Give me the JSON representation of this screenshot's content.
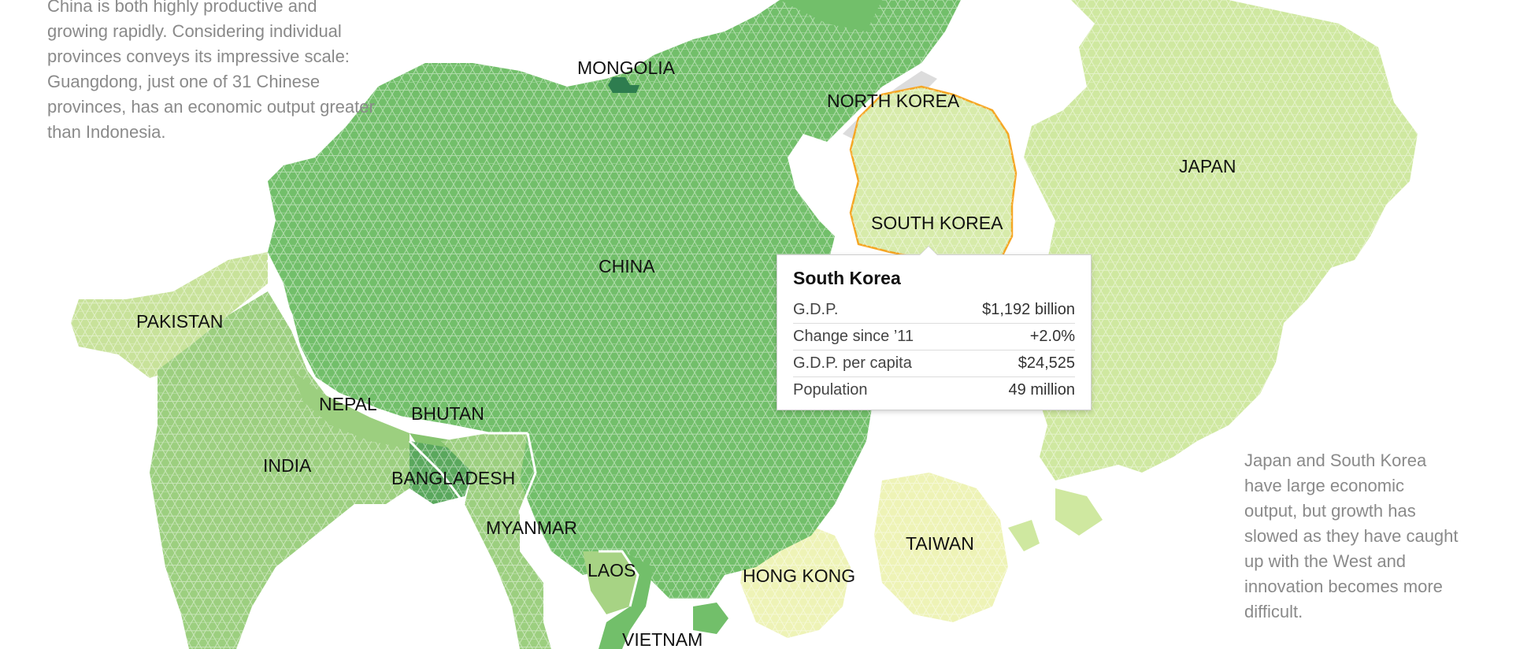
{
  "annotations": {
    "china": "China is both highly productive and\ngrowing rapidly. Considering individual\nprovinces conveys its impressive scale:\nGuangdong, just one of 31 Chinese\nprovinces, has an economic output greater\nthan Indonesia.",
    "japan": "Japan and South Korea\nhave large economic\noutput, but growth has\nslowed as they have caught\nup with the West and\ninnovation becomes more\ndifficult."
  },
  "countries": [
    {
      "name": "MONGOLIA",
      "color": "#2e7d4f"
    },
    {
      "name": "NORTH KOREA",
      "color": "#dcdcdc"
    },
    {
      "name": "JAPAN",
      "color": "#cfe8a0"
    },
    {
      "name": "SOUTH KOREA",
      "color": "#d7ebaa"
    },
    {
      "name": "CHINA",
      "color": "#72bf6a"
    },
    {
      "name": "PAKISTAN",
      "color": "#c8e29a"
    },
    {
      "name": "NEPAL",
      "color": "#9ccf7f"
    },
    {
      "name": "BHUTAN",
      "color": "#86c46f"
    },
    {
      "name": "INDIA",
      "color": "#9ccf7f"
    },
    {
      "name": "BANGLADESH",
      "color": "#5aa85d"
    },
    {
      "name": "MYANMAR",
      "color": "#9ccf7f"
    },
    {
      "name": "LAOS",
      "color": "#a7d384"
    },
    {
      "name": "HONG KONG",
      "color": "#eef3b6"
    },
    {
      "name": "TAIWAN",
      "color": "#eef3b6"
    },
    {
      "name": "VIETNAM",
      "color": "#72bf6a"
    }
  ],
  "tooltip": {
    "title": "South Korea",
    "rows": [
      {
        "label": "G.D.P.",
        "value": "$1,192 billion"
      },
      {
        "label": "Change since ’11",
        "value": "+2.0%"
      },
      {
        "label": "G.D.P. per capita",
        "value": "$24,525"
      },
      {
        "label": "Population",
        "value": "49 million"
      }
    ]
  },
  "colors": {
    "highlight_outline": "#f5a623",
    "border": "#ffffff",
    "label": "#111111"
  }
}
